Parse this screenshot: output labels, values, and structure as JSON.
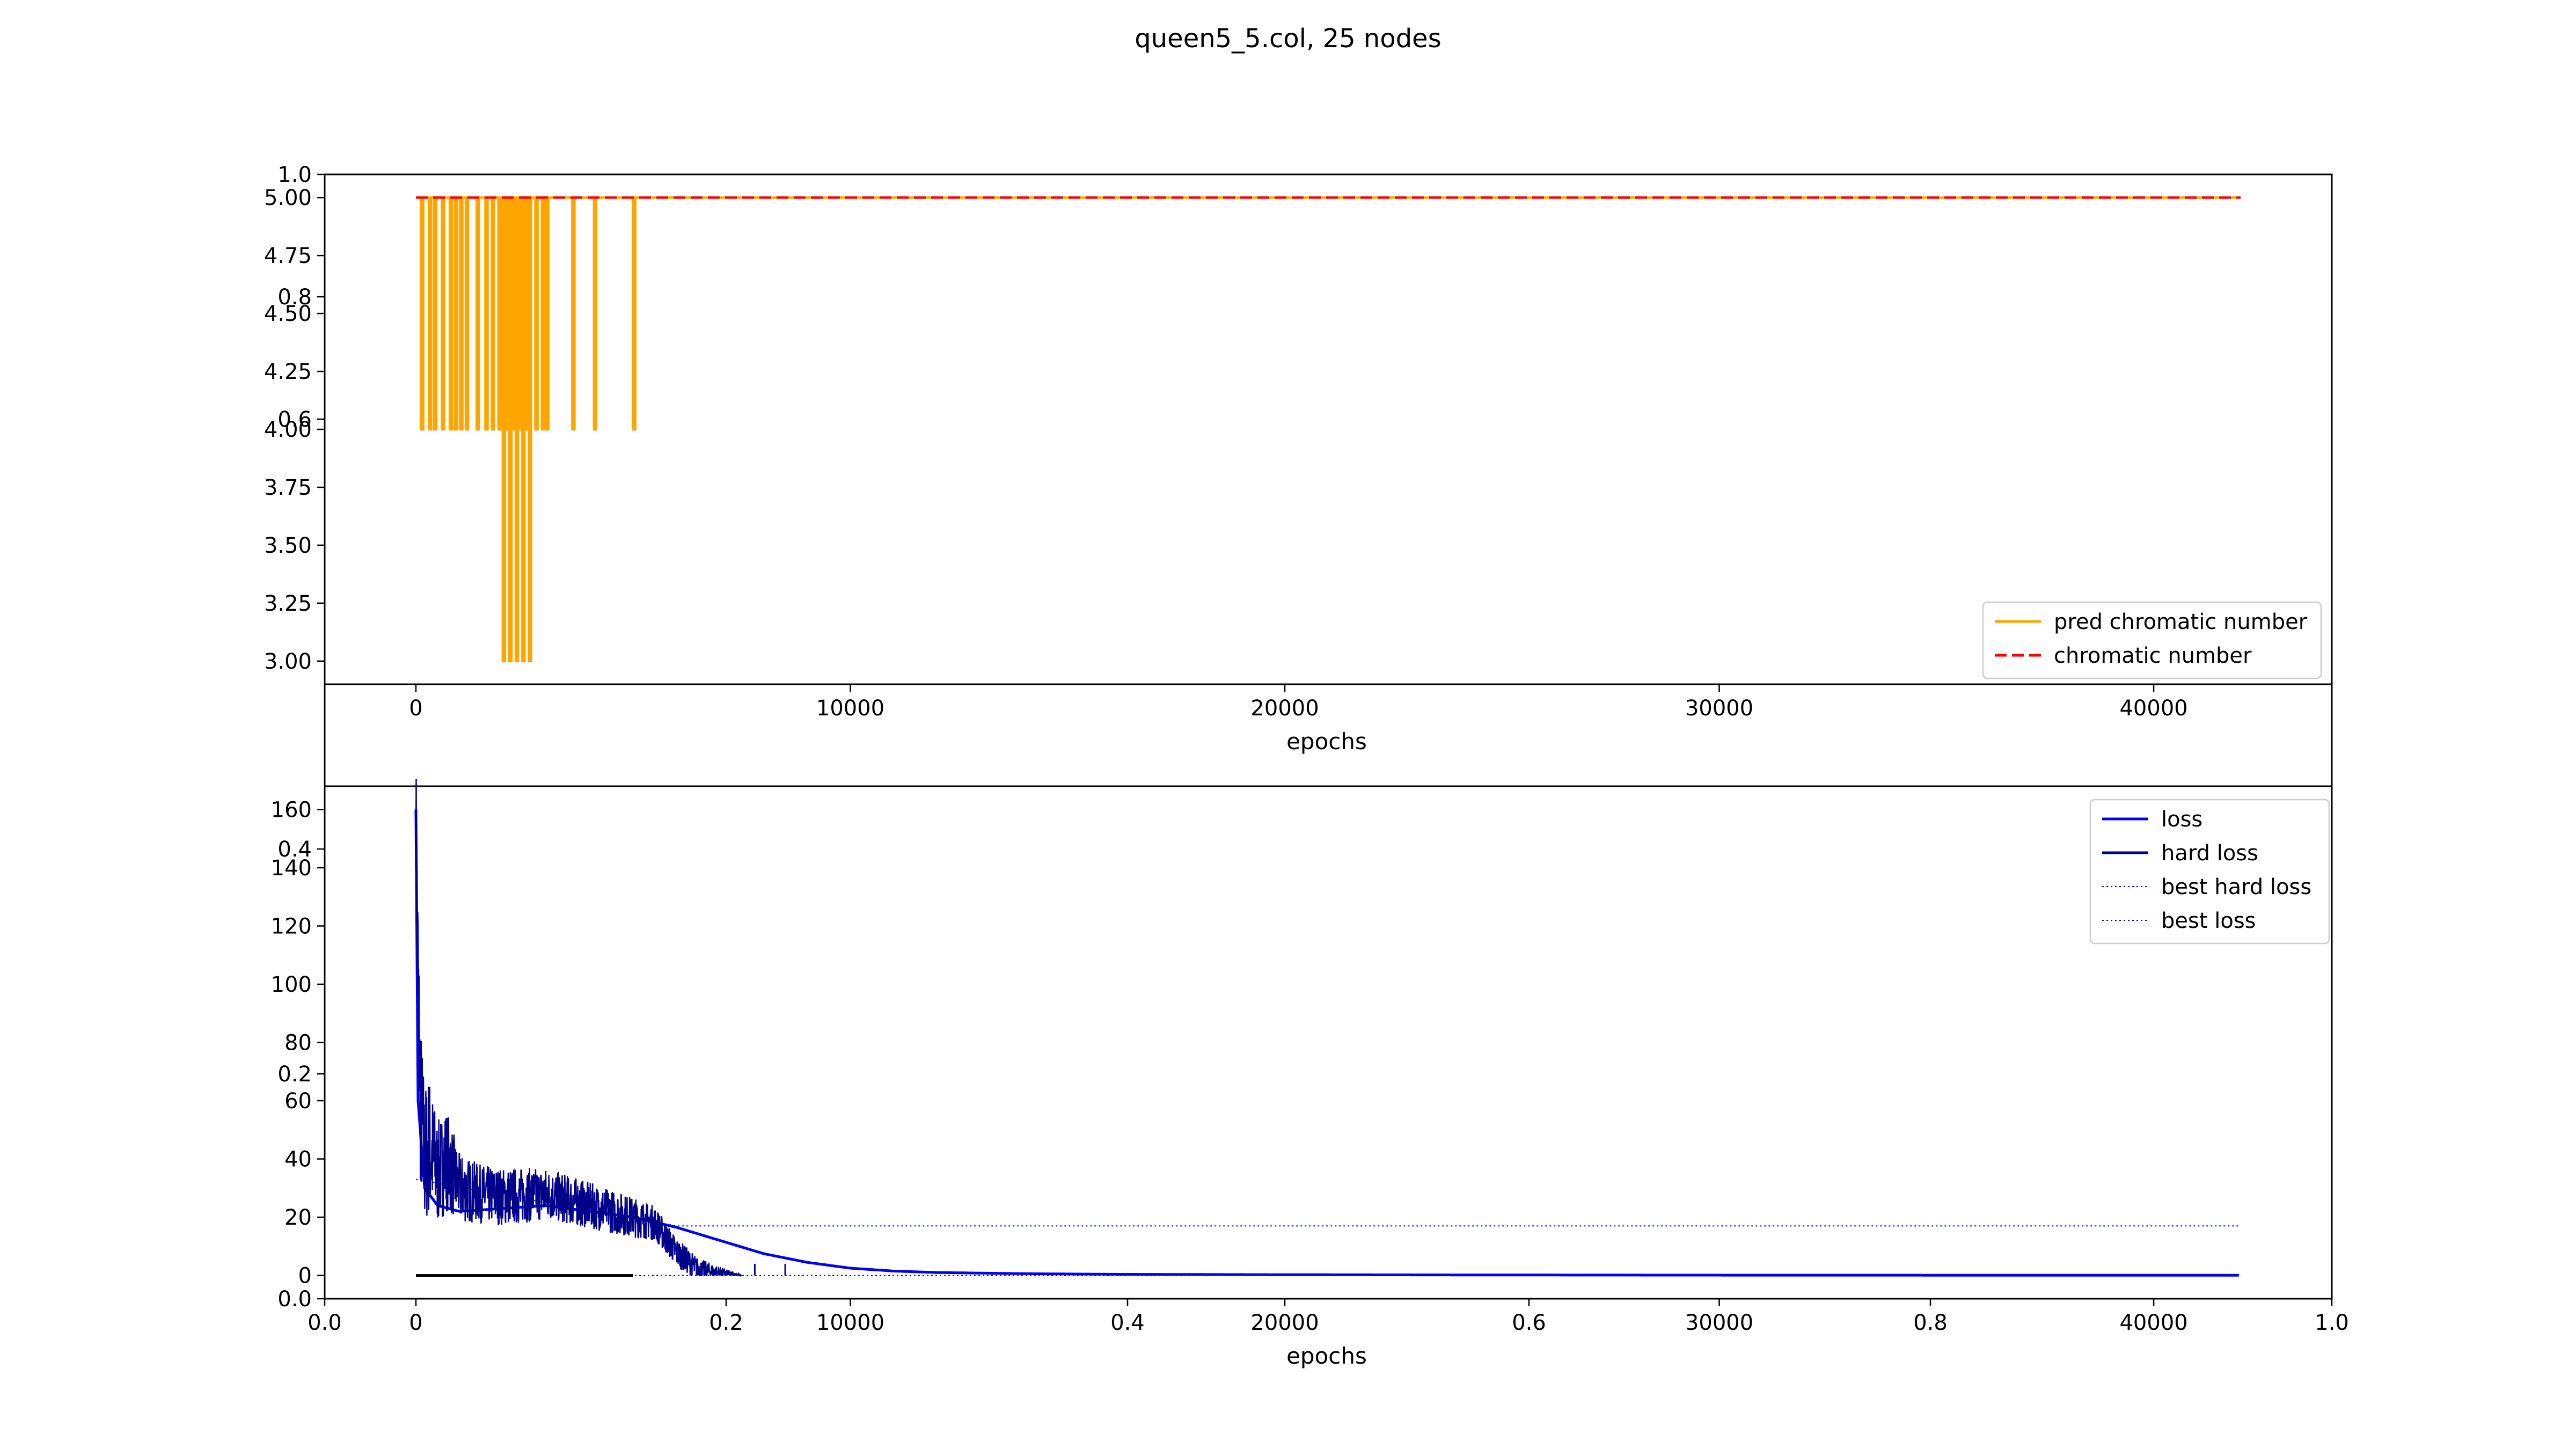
{
  "title": "queen5_5.col, 25 nodes",
  "chart_data": [
    {
      "type": "line",
      "panel": "top",
      "xlabel": "epochs",
      "ylabel": "",
      "xlim": [
        -2100,
        44100
      ],
      "ylim": [
        2.9,
        5.1
      ],
      "xticks": [
        0,
        10000,
        20000,
        30000,
        40000
      ],
      "yticks": [
        3.0,
        3.25,
        3.5,
        3.75,
        4.0,
        4.25,
        4.5,
        4.75,
        5.0
      ],
      "ytick_labels": [
        "3.00",
        "3.25",
        "3.50",
        "3.75",
        "4.00",
        "4.25",
        "4.50",
        "4.75",
        "5.00"
      ],
      "overlay_yticks": [
        0.6,
        0.8,
        1.0
      ],
      "overlay_ytick_labels": [
        "0.6",
        "0.8",
        "1.0"
      ],
      "legend": "lower right",
      "grid": false,
      "series": [
        {
          "name": "pred chromatic number",
          "color": "#ffa500",
          "style": "solid",
          "base": 5,
          "dips_to_4": [
            120,
            300,
            420,
            600,
            780,
            900,
            1020,
            1150,
            1400,
            1600,
            1750,
            1900,
            2050,
            2200,
            2350,
            2500,
            2600,
            2750,
            2900,
            3000,
            3600,
            4100,
            5000
          ],
          "dips_to_3": [
            2000,
            2150,
            2300,
            2450,
            2600
          ],
          "x_end": 42000
        },
        {
          "name": "chromatic number",
          "color": "#ff0000",
          "style": "dashed",
          "x": [
            0,
            42000
          ],
          "y": [
            5,
            5
          ]
        }
      ]
    },
    {
      "type": "line",
      "panel": "bottom",
      "xlabel": "epochs",
      "ylabel": "",
      "xlim": [
        -2100,
        44100
      ],
      "ylim": [
        -8,
        168
      ],
      "xticks": [
        0,
        10000,
        20000,
        30000,
        40000
      ],
      "yticks": [
        0,
        20,
        40,
        60,
        80,
        100,
        120,
        140,
        160
      ],
      "overlay_xticks": [
        0.0,
        0.2,
        0.4,
        0.6,
        0.8,
        1.0
      ],
      "overlay_xtick_labels": [
        "0.0",
        "0.2",
        "0.4",
        "0.6",
        "0.8",
        "1.0"
      ],
      "overlay_yticks": [
        0.0,
        0.2,
        0.4
      ],
      "overlay_ytick_labels": [
        "0.0",
        "0.2",
        "0.4"
      ],
      "legend": "upper right",
      "grid": false,
      "series": [
        {
          "name": "loss",
          "color": "#0000ff",
          "style": "solid",
          "x": [
            0,
            50,
            200,
            500,
            1000,
            2000,
            3000,
            4000,
            5000,
            6000,
            7000,
            8000,
            9000,
            10000,
            11000,
            12000,
            14000,
            16000,
            20000,
            25000,
            30000,
            35000,
            42000
          ],
          "y": [
            160,
            60,
            30,
            24,
            22,
            23,
            24,
            22,
            20,
            16.5,
            12,
            7.5,
            4.5,
            2.5,
            1.5,
            1.0,
            0.6,
            0.4,
            0.25,
            0.15,
            0.1,
            0.08,
            0.05
          ]
        },
        {
          "name": "hard loss",
          "color": "#00008b",
          "style": "solid",
          "x": [
            0,
            30,
            100,
            200,
            300,
            500,
            700,
            1000,
            1500,
            2000,
            3000,
            4000,
            5000,
            5500,
            6000,
            6500,
            7000,
            7500
          ],
          "y": [
            160,
            120,
            60,
            40,
            45,
            35,
            40,
            30,
            28,
            27,
            28,
            24,
            20,
            18,
            8,
            2,
            1,
            0
          ],
          "noise_amp": [
            20,
            30,
            30,
            25,
            25,
            18,
            18,
            12,
            10,
            10,
            9,
            8,
            7,
            6,
            5,
            4,
            2,
            0
          ],
          "sparse_x": [
            7800,
            8500
          ]
        },
        {
          "name": "best hard loss",
          "color": "#0000ff",
          "style": "dotted",
          "x": [
            0,
            42000
          ],
          "y": [
            0,
            0
          ]
        },
        {
          "name": "best loss",
          "color": "#0000ff",
          "style": "dotted",
          "x": [
            0,
            6000,
            42000
          ],
          "y": [
            33,
            17,
            17
          ]
        }
      ],
      "baseline": {
        "color": "#000000",
        "x": [
          0,
          5000
        ],
        "y": [
          0,
          0
        ]
      }
    }
  ]
}
